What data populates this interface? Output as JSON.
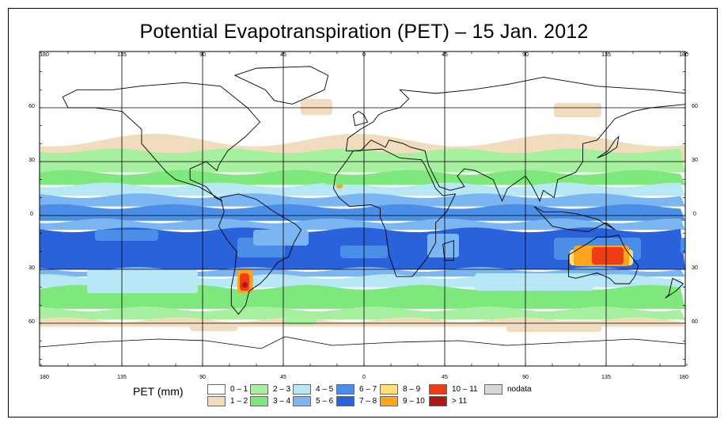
{
  "title": "Potential Evapotranspiration (PET) – 15 Jan. 2012",
  "axes": {
    "lon_ticks": [
      "180",
      "135",
      "90",
      "45",
      "0",
      "45",
      "90",
      "135",
      "180"
    ],
    "lat_ticks": [
      "60",
      "30",
      "0",
      "30",
      "60"
    ]
  },
  "legend": {
    "title": "PET (mm)",
    "items": [
      {
        "label": "0 – 1",
        "color": "#ffffff"
      },
      {
        "label": "1 – 2",
        "color": "#f2dcbe"
      },
      {
        "label": "2 – 3",
        "color": "#a6f0a0"
      },
      {
        "label": "3 – 4",
        "color": "#7fe87c"
      },
      {
        "label": "4 – 5",
        "color": "#b8e8f6"
      },
      {
        "label": "5 – 6",
        "color": "#7cb6f2"
      },
      {
        "label": "6 – 7",
        "color": "#4a8ee8"
      },
      {
        "label": "7 – 8",
        "color": "#2a62dc"
      },
      {
        "label": "8 – 9",
        "color": "#ffe07a"
      },
      {
        "label": "9 – 10",
        "color": "#ffa41c"
      },
      {
        "label": "10 – 11",
        "color": "#f03c14"
      },
      {
        "label": "> 11",
        "color": "#b01818"
      },
      {
        "label": "nodata",
        "color": "#d8d8d8"
      }
    ]
  }
}
